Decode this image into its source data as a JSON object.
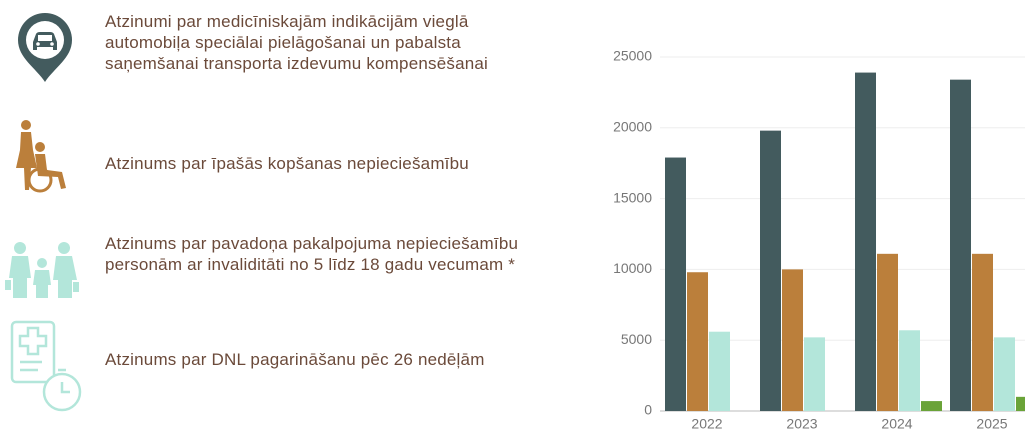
{
  "chart_data": {
    "type": "bar",
    "categories": [
      "2022",
      "2023",
      "2024",
      "2025"
    ],
    "series": [
      {
        "name": "Atzinumi par medicīniskajām indikācijām vieglā automobiļa speciālai pielāgošanai un pabalsta saņemšanai transporta izdevumu kompensēšanai",
        "color": "#435b5e",
        "values": [
          17900,
          19800,
          23900,
          23400
        ]
      },
      {
        "name": "Atzinums par īpašās kopšanas nepieciešamību",
        "color": "#bb7f3b",
        "values": [
          9800,
          10000,
          11100,
          11100
        ]
      },
      {
        "name": "Atzinums par pavadoņa pakalpojuma nepieciešamību personām ar invaliditāti no 5 līdz 18 gadu vecumam *",
        "color": "#b3e6da",
        "values": [
          5600,
          5200,
          5700,
          5200
        ]
      },
      {
        "name": "Atzinums par DNL pagarināšanu pēc 26 nedēļām",
        "color": "#6aa338",
        "values": [
          null,
          null,
          700,
          1000
        ]
      }
    ],
    "ylim": [
      0,
      25000
    ],
    "yticks": [
      0,
      5000,
      10000,
      15000,
      20000,
      25000
    ],
    "grid": true
  }
}
